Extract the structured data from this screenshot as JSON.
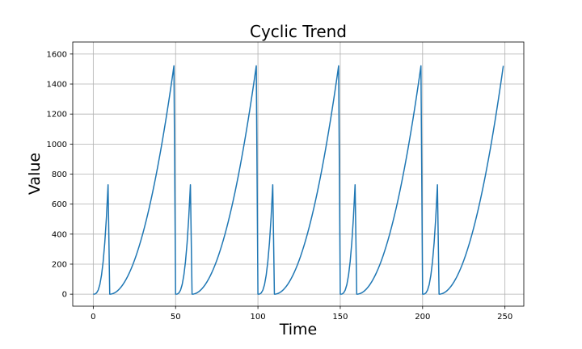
{
  "chart_data": {
    "type": "line",
    "title": "Cyclic Trend",
    "xlabel": "Time",
    "ylabel": "Value",
    "xlim": [
      -12.45,
      261.45
    ],
    "ylim": [
      -80,
      1680
    ],
    "grid": true,
    "xticks": [
      0,
      50,
      100,
      150,
      200,
      250
    ],
    "yticks": [
      0,
      200,
      400,
      600,
      800,
      1000,
      1200,
      1400,
      1600
    ],
    "series": [
      {
        "color": "#1f77b4",
        "x": [
          0,
          1,
          2,
          3,
          4,
          5,
          6,
          7,
          8,
          9,
          10,
          11,
          12,
          13,
          14,
          15,
          16,
          17,
          18,
          19,
          20,
          21,
          22,
          23,
          24,
          25,
          26,
          27,
          28,
          29,
          30,
          31,
          32,
          33,
          34,
          35,
          36,
          37,
          38,
          39,
          40,
          41,
          42,
          43,
          44,
          45,
          46,
          47,
          48,
          49,
          50,
          51,
          52,
          53,
          54,
          55,
          56,
          57,
          58,
          59,
          60,
          61,
          62,
          63,
          64,
          65,
          66,
          67,
          68,
          69,
          70,
          71,
          72,
          73,
          74,
          75,
          76,
          77,
          78,
          79,
          80,
          81,
          82,
          83,
          84,
          85,
          86,
          87,
          88,
          89,
          90,
          91,
          92,
          93,
          94,
          95,
          96,
          97,
          98,
          99,
          100,
          101,
          102,
          103,
          104,
          105,
          106,
          107,
          108,
          109,
          110,
          111,
          112,
          113,
          114,
          115,
          116,
          117,
          118,
          119,
          120,
          121,
          122,
          123,
          124,
          125,
          126,
          127,
          128,
          129,
          130,
          131,
          132,
          133,
          134,
          135,
          136,
          137,
          138,
          139,
          140,
          141,
          142,
          143,
          144,
          145,
          146,
          147,
          148,
          149,
          150,
          151,
          152,
          153,
          154,
          155,
          156,
          157,
          158,
          159,
          160,
          161,
          162,
          163,
          164,
          165,
          166,
          167,
          168,
          169,
          170,
          171,
          172,
          173,
          174,
          175,
          176,
          177,
          178,
          179,
          180,
          181,
          182,
          183,
          184,
          185,
          186,
          187,
          188,
          189,
          190,
          191,
          192,
          193,
          194,
          195,
          196,
          197,
          198,
          199,
          200,
          201,
          202,
          203,
          204,
          205,
          206,
          207,
          208,
          209,
          210,
          211,
          212,
          213,
          214,
          215,
          216,
          217,
          218,
          219,
          220,
          221,
          222,
          223,
          224,
          225,
          226,
          227,
          228,
          229,
          230,
          231,
          232,
          233,
          234,
          235,
          236,
          237,
          238,
          239,
          240,
          241,
          242,
          243,
          244,
          245,
          246,
          247,
          248,
          249
        ],
        "y": [
          0,
          1,
          8,
          27,
          64,
          125,
          216,
          343,
          512,
          729,
          0,
          1,
          4,
          9,
          16,
          25,
          36,
          49,
          64,
          81,
          100,
          121,
          144,
          169,
          196,
          225,
          256,
          289,
          324,
          361,
          400,
          441,
          484,
          529,
          576,
          625,
          676,
          729,
          784,
          841,
          900,
          961,
          1024,
          1089,
          1156,
          1225,
          1296,
          1369,
          1444,
          1521,
          0,
          1,
          8,
          27,
          64,
          125,
          216,
          343,
          512,
          729,
          0,
          1,
          4,
          9,
          16,
          25,
          36,
          49,
          64,
          81,
          100,
          121,
          144,
          169,
          196,
          225,
          256,
          289,
          324,
          361,
          400,
          441,
          484,
          529,
          576,
          625,
          676,
          729,
          784,
          841,
          900,
          961,
          1024,
          1089,
          1156,
          1225,
          1296,
          1369,
          1444,
          1521,
          0,
          1,
          8,
          27,
          64,
          125,
          216,
          343,
          512,
          729,
          0,
          1,
          4,
          9,
          16,
          25,
          36,
          49,
          64,
          81,
          100,
          121,
          144,
          169,
          196,
          225,
          256,
          289,
          324,
          361,
          400,
          441,
          484,
          529,
          576,
          625,
          676,
          729,
          784,
          841,
          900,
          961,
          1024,
          1089,
          1156,
          1225,
          1296,
          1369,
          1444,
          1521,
          0,
          1,
          8,
          27,
          64,
          125,
          216,
          343,
          512,
          729,
          0,
          1,
          4,
          9,
          16,
          25,
          36,
          49,
          64,
          81,
          100,
          121,
          144,
          169,
          196,
          225,
          256,
          289,
          324,
          361,
          400,
          441,
          484,
          529,
          576,
          625,
          676,
          729,
          784,
          841,
          900,
          961,
          1024,
          1089,
          1156,
          1225,
          1296,
          1369,
          1444,
          1521,
          0,
          1,
          8,
          27,
          64,
          125,
          216,
          343,
          512,
          729,
          0,
          1,
          4,
          9,
          16,
          25,
          36,
          49,
          64,
          81,
          100,
          121,
          144,
          169,
          196,
          225,
          256,
          289,
          324,
          361,
          400,
          441,
          484,
          529,
          576,
          625,
          676,
          729,
          784,
          841,
          900,
          961,
          1024,
          1089,
          1156,
          1225,
          1296,
          1369,
          1444,
          1521
        ]
      }
    ]
  }
}
